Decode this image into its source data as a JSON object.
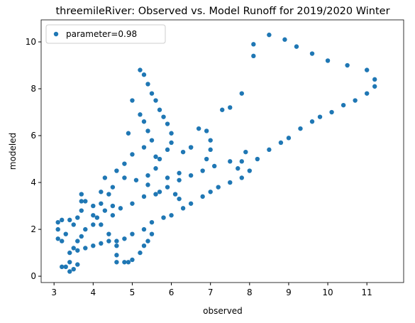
{
  "chart_data": {
    "type": "scatter",
    "title": "threemileRiver: Observed vs. Model Runoff for 2019/2020 Winter",
    "x_label": "observed",
    "y_label": "modeled",
    "legend_position": "upper left",
    "xlim": [
      2.67,
      11.94
    ],
    "ylim": [
      -0.27,
      10.94
    ],
    "xticks": [
      3,
      4,
      5,
      6,
      7,
      8,
      9,
      10,
      11
    ],
    "yticks": [
      0,
      2,
      4,
      6,
      8,
      10
    ],
    "series": [
      {
        "name": "parameter=0.98",
        "color": "#1f77b4",
        "x": [
          5.3,
          5.5,
          5.8,
          6.0,
          6.3,
          6.5,
          6.8,
          7.0,
          7.2,
          7.5,
          7.8,
          8.0,
          8.2,
          8.5,
          8.8,
          9.0,
          9.3,
          9.6,
          9.8,
          10.1,
          10.4,
          10.7,
          11.0,
          11.2,
          11.2,
          11.0,
          10.5,
          10.0,
          9.6,
          9.2,
          8.9,
          8.5,
          8.1,
          8.1,
          7.8,
          7.5,
          7.3,
          5.6,
          5.9,
          6.2,
          6.5,
          6.8,
          7.1,
          7.5,
          7.9,
          7.8,
          7.7,
          6.7,
          6.9,
          7.0,
          7.0,
          6.9,
          6.5,
          5.2,
          5.3,
          5.4,
          5.5,
          5.6,
          5.7,
          5.8,
          5.9,
          6.0,
          6.0,
          5.9,
          5.7,
          5.6,
          5.4,
          5.2,
          5.3,
          5.4,
          5.5,
          5.0,
          4.9,
          4.5,
          4.3,
          4.1,
          4.0,
          3.8,
          3.7,
          3.6,
          3.5,
          3.4,
          3.6,
          3.8,
          4.0,
          4.2,
          4.4,
          4.6,
          4.8,
          5.0,
          3.1,
          3.2,
          3.1,
          3.1,
          3.2,
          3.3,
          3.4,
          3.5,
          3.6,
          3.7,
          3.7,
          3.7,
          3.8,
          3.3,
          3.4,
          3.5,
          3.6,
          3.4,
          3.2,
          4.8,
          4.6,
          4.9,
          5.0,
          5.2,
          5.3,
          5.4,
          5.5,
          4.6,
          4.6,
          4.4,
          4.2,
          4.5,
          4.7,
          5.0,
          5.3,
          4.5,
          4.8,
          5.1,
          5.4,
          5.7,
          6.1,
          6.2,
          4.3,
          4.6,
          4.8,
          5.0,
          5.3,
          5.6,
          6.3,
          6.5,
          6.2,
          5.9,
          4.2,
          4.4,
          4.0,
          4.2,
          4.0
        ],
        "values": [
          2.0,
          2.3,
          2.5,
          2.6,
          2.9,
          3.1,
          3.4,
          3.6,
          3.8,
          4.0,
          4.2,
          4.5,
          5.0,
          5.4,
          5.7,
          5.9,
          6.3,
          6.6,
          6.8,
          7.0,
          7.3,
          7.5,
          7.8,
          8.1,
          8.4,
          8.8,
          9.0,
          9.2,
          9.5,
          9.8,
          10.1,
          10.3,
          9.9,
          9.4,
          7.8,
          7.2,
          7.1,
          3.5,
          3.8,
          4.1,
          4.3,
          4.5,
          4.7,
          4.9,
          5.3,
          4.9,
          4.6,
          6.3,
          6.2,
          5.8,
          5.4,
          5.0,
          5.5,
          8.8,
          8.6,
          8.2,
          7.8,
          7.5,
          7.1,
          6.8,
          6.5,
          6.1,
          5.7,
          5.4,
          5.0,
          4.6,
          4.3,
          6.9,
          6.6,
          6.2,
          5.8,
          7.5,
          6.1,
          3.0,
          2.8,
          2.5,
          2.2,
          2.0,
          1.7,
          1.5,
          1.2,
          1.0,
          1.1,
          1.2,
          1.3,
          1.4,
          1.5,
          1.5,
          1.6,
          1.8,
          2.3,
          2.4,
          2.0,
          1.6,
          1.5,
          1.8,
          2.4,
          2.2,
          2.5,
          2.8,
          3.2,
          3.5,
          3.2,
          0.4,
          0.2,
          0.3,
          0.5,
          0.6,
          0.4,
          0.6,
          0.6,
          0.6,
          0.7,
          1.0,
          1.3,
          1.5,
          1.8,
          0.9,
          1.3,
          1.8,
          2.2,
          2.6,
          2.9,
          3.1,
          3.4,
          3.8,
          4.2,
          4.1,
          3.9,
          3.6,
          3.5,
          3.3,
          4.2,
          4.5,
          4.8,
          5.2,
          5.5,
          5.1,
          5.3,
          5.5,
          4.4,
          4.2,
          3.6,
          3.5,
          3.0,
          3.1,
          2.6
        ]
      }
    ]
  }
}
